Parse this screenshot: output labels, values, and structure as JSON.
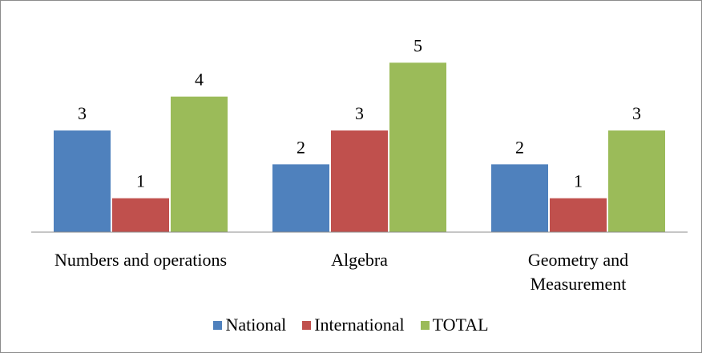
{
  "chart_data": {
    "type": "bar",
    "categories": [
      "Numbers and operations",
      "Algebra",
      "Geometry and Measurement"
    ],
    "series": [
      {
        "name": "National",
        "color": "#4f81bd",
        "values": [
          3,
          2,
          2
        ]
      },
      {
        "name": "International",
        "color": "#c0504d",
        "values": [
          1,
          3,
          1
        ]
      },
      {
        "name": "TOTAL",
        "color": "#9bbb59",
        "values": [
          4,
          5,
          3
        ]
      }
    ],
    "ylim": [
      0,
      6
    ],
    "legend": "bottom"
  }
}
